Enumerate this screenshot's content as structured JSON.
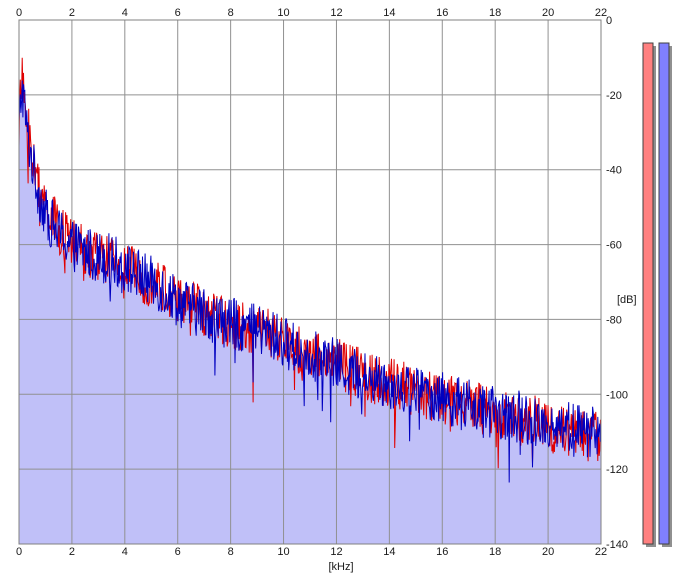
{
  "chart_data": {
    "type": "area",
    "title": "",
    "xlabel": "[kHz]",
    "ylabel": "[dB]",
    "x_range": [
      0,
      22
    ],
    "y_range": [
      -140,
      0
    ],
    "x_ticks": [
      0,
      2,
      4,
      6,
      8,
      10,
      12,
      14,
      16,
      18,
      20,
      22
    ],
    "y_ticks": [
      0,
      -20,
      -40,
      -60,
      -80,
      -100,
      -120,
      -140
    ],
    "x_tick_labels_bottom_and_top": true,
    "y_tick_labels_side": "right",
    "grid": true,
    "legend": "none",
    "fill_color": "#c0c0f8",
    "series": [
      {
        "color": "#0000c0",
        "x": [
          0.0,
          0.1,
          0.2,
          0.3,
          0.5,
          0.7,
          1.0,
          1.5,
          2.0,
          2.5,
          3.0,
          3.5,
          4.0,
          4.5,
          5.0,
          5.5,
          6.0,
          6.5,
          7.0,
          7.5,
          8.0,
          8.5,
          9.0,
          9.5,
          10.0,
          10.5,
          11.0,
          11.5,
          12.0,
          12.5,
          13.0,
          13.5,
          14.0,
          14.5,
          15.0,
          15.5,
          16.0,
          16.5,
          17.0,
          17.5,
          18.0,
          18.5,
          19.0,
          19.5,
          20.0,
          20.5,
          21.0,
          21.5,
          22.0
        ],
        "values": [
          -30,
          -18,
          -22,
          -30,
          -38,
          -45,
          -52,
          -57,
          -60,
          -62,
          -63,
          -64,
          -66,
          -68,
          -70,
          -72,
          -75,
          -77,
          -78,
          -80,
          -81,
          -82,
          -83,
          -84,
          -86,
          -88,
          -89,
          -91,
          -92,
          -94,
          -95,
          -96,
          -97,
          -98,
          -99,
          -100,
          -101,
          -102,
          -103,
          -104,
          -105,
          -106,
          -106,
          -107,
          -108,
          -108,
          -109,
          -110,
          -110
        ]
      },
      {
        "color": "#e00000",
        "x": [
          0.0,
          0.1,
          0.2,
          0.3,
          0.5,
          0.7,
          1.0,
          1.5,
          2.0,
          2.5,
          3.0,
          3.5,
          4.0,
          4.5,
          5.0,
          5.5,
          6.0,
          6.5,
          7.0,
          7.5,
          8.0,
          8.5,
          9.0,
          9.5,
          10.0,
          10.5,
          11.0,
          11.5,
          12.0,
          12.5,
          13.0,
          13.5,
          14.0,
          14.5,
          15.0,
          15.5,
          16.0,
          16.5,
          17.0,
          17.5,
          18.0,
          18.5,
          19.0,
          19.5,
          20.0,
          20.5,
          21.0,
          21.5,
          22.0
        ],
        "values": [
          -28,
          -16,
          -20,
          -28,
          -36,
          -44,
          -50,
          -56,
          -60,
          -62,
          -63,
          -65,
          -66,
          -68,
          -70,
          -72,
          -75,
          -76,
          -78,
          -80,
          -81,
          -82,
          -83,
          -84,
          -86,
          -88,
          -89,
          -90,
          -92,
          -93,
          -95,
          -96,
          -97,
          -98,
          -99,
          -100,
          -101,
          -102,
          -103,
          -104,
          -105,
          -106,
          -107,
          -107,
          -108,
          -109,
          -110,
          -111,
          -111
        ]
      }
    ]
  },
  "level_meters": [
    {
      "color": "#ff8080",
      "level": 1.0
    },
    {
      "color": "#8080ff",
      "level": 1.0
    }
  ]
}
